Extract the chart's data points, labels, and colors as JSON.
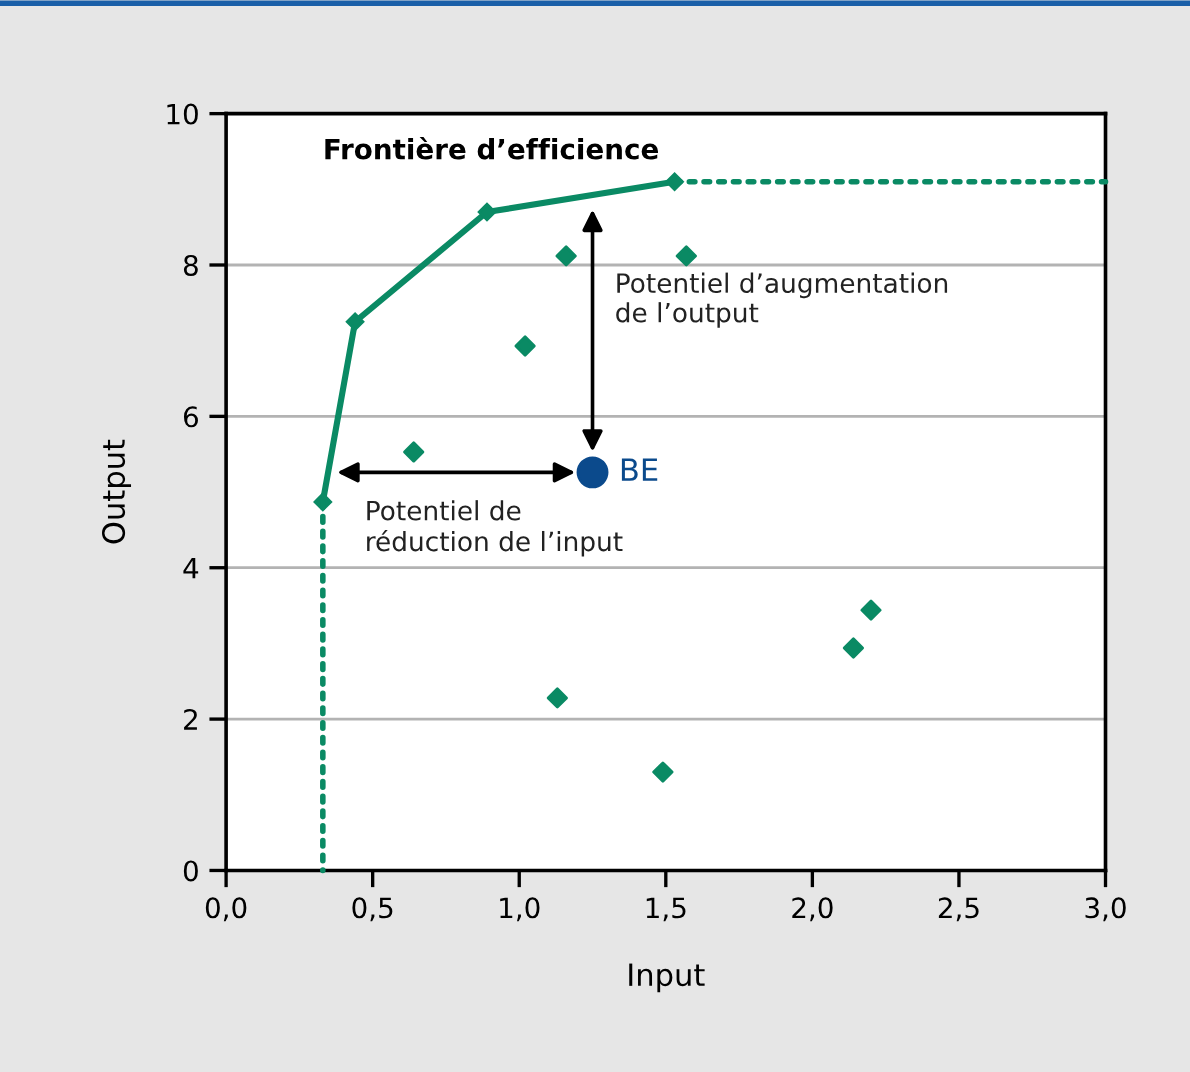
{
  "chart_data": {
    "type": "scatter",
    "title": "Frontière d’efficience",
    "xlabel": "Input",
    "ylabel": "Output",
    "xlim": [
      0,
      3
    ],
    "ylim": [
      0,
      10
    ],
    "xticks": [
      {
        "value": 0,
        "label": "0,0"
      },
      {
        "value": 0.5,
        "label": "0,5"
      },
      {
        "value": 1,
        "label": "1,0"
      },
      {
        "value": 1.5,
        "label": "1,5"
      },
      {
        "value": 2,
        "label": "2,0"
      },
      {
        "value": 2.5,
        "label": "2,5"
      },
      {
        "value": 3,
        "label": "3,0"
      }
    ],
    "yticks": [
      0,
      2,
      4,
      6,
      8,
      10
    ],
    "grid": "y",
    "legend": false,
    "marker": "diamond",
    "series": [
      {
        "type": "line",
        "color": "#0a8a64",
        "x": [
          0.33,
          0.44,
          0.89,
          1.53
        ],
        "values": [
          4.87,
          7.25,
          8.7,
          9.1
        ],
        "line_style": "solid"
      },
      {
        "type": "line",
        "color": "#0a8a64",
        "x": [
          0.33,
          0.33
        ],
        "values": [
          4.87,
          0
        ],
        "line_style": "dotted",
        "marker": "none"
      },
      {
        "type": "line",
        "color": "#0a8a64",
        "x": [
          1.53,
          3.0
        ],
        "values": [
          9.1,
          9.1
        ],
        "line_style": "dotted",
        "marker": "none"
      },
      {
        "color": "#0a8a64",
        "x": [
          0.64,
          1.02,
          1.16,
          1.57,
          1.13,
          1.49,
          2.14,
          2.2
        ],
        "values": [
          5.53,
          6.93,
          8.12,
          8.12,
          2.28,
          1.3,
          2.94,
          3.44
        ]
      },
      {
        "name": "BE",
        "color": "#0b4a8c",
        "x": [
          1.25
        ],
        "values": [
          5.26
        ],
        "marker": "circle"
      }
    ],
    "annotations": [
      "Potentiel de\nréduction de l’input",
      "Potentiel d’augmentation\nde l’output"
    ]
  }
}
